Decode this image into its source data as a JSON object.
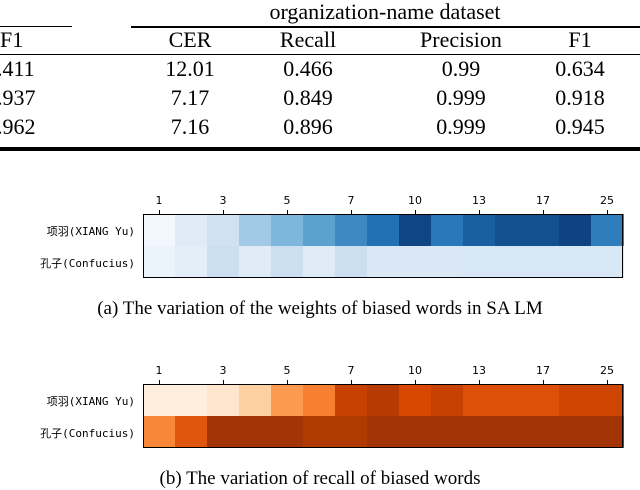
{
  "table": {
    "group_header": "organization-name dataset",
    "left_header": "F1",
    "columns": [
      "CER",
      "Recall",
      "Precision",
      "F1"
    ],
    "left_values": [
      ".411",
      ".937",
      ".962"
    ],
    "rows": [
      [
        "12.01",
        "0.466",
        "0.99",
        "0.634"
      ],
      [
        "7.17",
        "0.849",
        "0.999",
        "0.918"
      ],
      [
        "7.16",
        "0.896",
        "0.999",
        "0.945"
      ]
    ]
  },
  "chart_data": [
    {
      "type": "heatmap",
      "x_tick_labels": [
        "1",
        "3",
        "5",
        "7",
        "10",
        "13",
        "17",
        "25"
      ],
      "row_labels": [
        "项羽(XIANG Yu)",
        "孔子(Confucius)"
      ],
      "values": [
        [
          0.02,
          0.12,
          0.2,
          0.35,
          0.45,
          0.55,
          0.65,
          0.75,
          0.92,
          0.72,
          0.82,
          0.88,
          0.88,
          0.93,
          0.7
        ],
        [
          0.06,
          0.1,
          0.22,
          0.12,
          0.22,
          0.12,
          0.22,
          0.15,
          0.15,
          0.15,
          0.16,
          0.16,
          0.16,
          0.16,
          0.16
        ]
      ],
      "colormap": "Blues",
      "caption": "(a) The variation of the weights of biased words in SA LM"
    },
    {
      "type": "heatmap",
      "x_tick_labels": [
        "1",
        "3",
        "5",
        "7",
        "10",
        "13",
        "17",
        "25"
      ],
      "row_labels": [
        "项羽(XIANG Yu)",
        "孔子(Confucius)"
      ],
      "values": [
        [
          0.05,
          0.05,
          0.1,
          0.25,
          0.45,
          0.55,
          0.8,
          0.85,
          0.75,
          0.8,
          0.72,
          0.72,
          0.72,
          0.78,
          0.78
        ],
        [
          0.52,
          0.7,
          0.9,
          0.9,
          0.9,
          0.86,
          0.86,
          0.9,
          0.9,
          0.9,
          0.9,
          0.9,
          0.9,
          0.9,
          0.9
        ]
      ],
      "colormap": "Oranges",
      "caption": "(b) The variation of recall of biased words"
    }
  ]
}
